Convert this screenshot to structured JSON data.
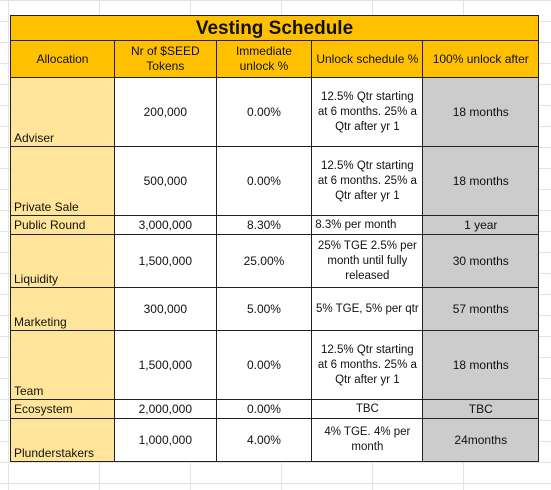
{
  "title": "Vesting Schedule",
  "headers": {
    "allocation": "Allocation",
    "tokens": "Nr of $SEED Tokens",
    "immediate": "Immediate unlock %",
    "schedule": "Unlock schedule %",
    "full": "100% unlock after"
  },
  "rows": [
    {
      "allocation": "Adviser",
      "tokens": "200,000",
      "immediate": "0.00%",
      "schedule": "12.5% Qtr starting at 6 months. 25% a Qtr after yr 1",
      "full": "18 months"
    },
    {
      "allocation": "Private Sale",
      "tokens": "500,000",
      "immediate": "0.00%",
      "schedule": "12.5% Qtr starting at 6 months. 25% a Qtr after yr 1",
      "full": "18 months"
    },
    {
      "allocation": "Public Round",
      "tokens": "3,000,000",
      "immediate": "8.30%",
      "schedule": "8.3% per month",
      "full": "1 year"
    },
    {
      "allocation": "Liquidity",
      "tokens": "1,500,000",
      "immediate": "25.00%",
      "schedule": "25% TGE 2.5% per month until fully released",
      "full": "30 months"
    },
    {
      "allocation": "Marketing",
      "tokens": "300,000",
      "immediate": "5.00%",
      "schedule": "5% TGE, 5% per qtr",
      "full": "57 months"
    },
    {
      "allocation": "Team",
      "tokens": "1,500,000",
      "immediate": "0.00%",
      "schedule": "12.5% Qtr starting at 6 months. 25% a Qtr after yr 1",
      "full": "18 months"
    },
    {
      "allocation": "Ecosystem",
      "tokens": "2,000,000",
      "immediate": "0.00%",
      "schedule": "TBC",
      "full": "TBC"
    },
    {
      "allocation": "Plunderstakers",
      "tokens": "1,000,000",
      "immediate": "4.00%",
      "schedule": "4% TGE. 4% per month",
      "full": "24months"
    }
  ],
  "colors": {
    "title_bg": "#ffc000",
    "header_bg": "#ffc000",
    "allocation_bg": "#ffe599",
    "full_unlock_bg": "#cccccc"
  }
}
